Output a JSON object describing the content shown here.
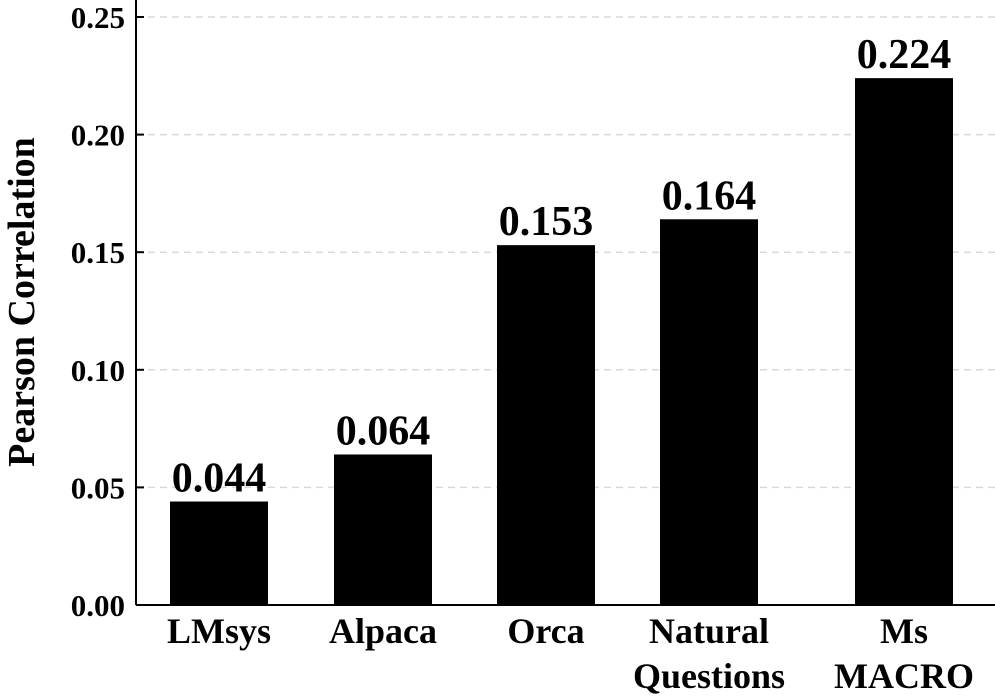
{
  "chart_data": {
    "type": "bar",
    "categories": [
      [
        "LMsys"
      ],
      [
        "Alpaca"
      ],
      [
        "Orca"
      ],
      [
        "Natural",
        "Questions"
      ],
      [
        "Ms",
        "MACRO"
      ]
    ],
    "values": [
      0.044,
      0.064,
      0.153,
      0.164,
      0.224
    ],
    "value_labels": [
      "0.044",
      "0.064",
      "0.153",
      "0.164",
      "0.224"
    ],
    "ylabel": "Pearson Correlation",
    "xlabel": "",
    "ylim": [
      0.0,
      0.25
    ],
    "yticks": [
      0.0,
      0.05,
      0.1,
      0.15,
      0.2,
      0.25
    ],
    "ytick_labels": [
      "0.00",
      "0.05",
      "0.10",
      "0.15",
      "0.20",
      "0.25"
    ],
    "grid": "horizontal dashed",
    "bar_color": "#000000",
    "grid_color": "#d9d9d9"
  }
}
